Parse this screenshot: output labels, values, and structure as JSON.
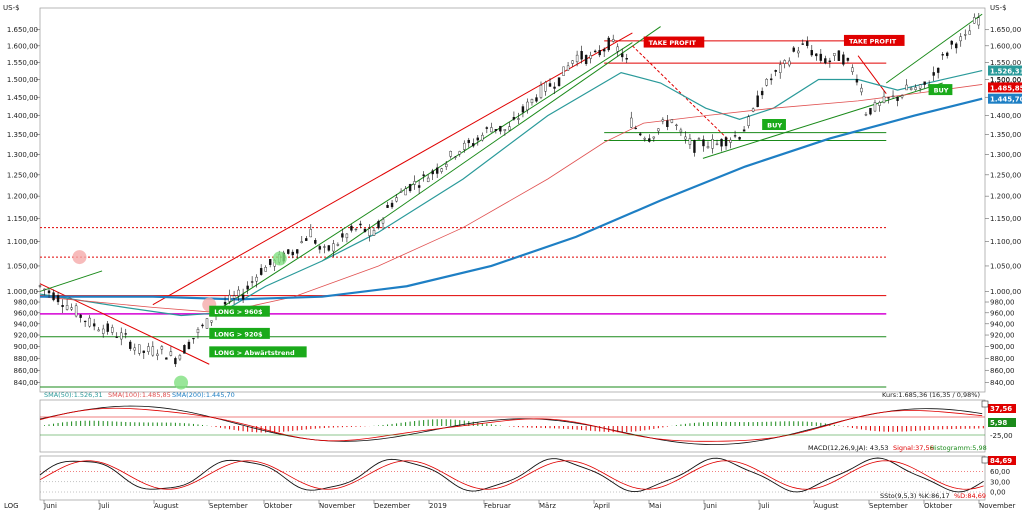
{
  "currency": "US-$",
  "scale_mode": "LOG",
  "colors": {
    "sma50": "#2a9a9a",
    "sma100": "#e05050",
    "sma200": "#1e7fc4",
    "up": "#111111",
    "resistance": "#e00000",
    "support": "#1a8a1a",
    "magenta": "#d400d4",
    "buy": "#1aaa1a",
    "sell": "#e00000"
  },
  "chart_data": [
    {
      "type": "candlestick",
      "title": "",
      "ylim": [
        825,
        1720
      ],
      "y_scale": "log",
      "y_ticks": [
        "840,00",
        "860,00",
        "880,00",
        "900,00",
        "920,00",
        "940,00",
        "960,00",
        "980,00",
        "1.000,00",
        "1.050,00",
        "1.100,00",
        "1.150,00",
        "1.200,00",
        "1.250,00",
        "1.300,00",
        "1.350,00",
        "1.400,00",
        "1.450,00",
        "1.500,00",
        "1.550,00",
        "1.600,00",
        "1.650,00"
      ],
      "y_tick_values": [
        840,
        860,
        880,
        900,
        920,
        940,
        960,
        980,
        1000,
        1050,
        1100,
        1150,
        1200,
        1250,
        1300,
        1350,
        1400,
        1450,
        1500,
        1550,
        1600,
        1650
      ],
      "x_ticks": [
        "Juni",
        "Juli",
        "August",
        "September",
        "Oktober",
        "November",
        "Dezember",
        "2019",
        "Februar",
        "März",
        "April",
        "Mai",
        "Juni",
        "Juli",
        "August",
        "September",
        "Oktober",
        "November"
      ],
      "price_path": [
        [
          0,
          1010
        ],
        [
          6,
          990
        ],
        [
          12,
          965
        ],
        [
          18,
          940
        ],
        [
          24,
          930
        ],
        [
          30,
          915
        ],
        [
          36,
          890
        ],
        [
          42,
          895
        ],
        [
          48,
          880
        ],
        [
          52,
          900
        ],
        [
          56,
          925
        ],
        [
          60,
          945
        ],
        [
          64,
          970
        ],
        [
          68,
          985
        ],
        [
          72,
          995
        ],
        [
          78,
          1040
        ],
        [
          84,
          1060
        ],
        [
          90,
          1080
        ],
        [
          96,
          1120
        ],
        [
          100,
          1075
        ],
        [
          104,
          1090
        ],
        [
          110,
          1120
        ],
        [
          114,
          1130
        ],
        [
          118,
          1110
        ],
        [
          124,
          1180
        ],
        [
          130,
          1220
        ],
        [
          136,
          1240
        ],
        [
          142,
          1270
        ],
        [
          148,
          1310
        ],
        [
          154,
          1330
        ],
        [
          160,
          1370
        ],
        [
          166,
          1360
        ],
        [
          172,
          1420
        ],
        [
          178,
          1470
        ],
        [
          184,
          1500
        ],
        [
          190,
          1570
        ],
        [
          196,
          1560
        ],
        [
          202,
          1610
        ],
        [
          206,
          1580
        ],
        [
          208,
          1550
        ],
        [
          209,
          1390
        ],
        [
          212,
          1360
        ],
        [
          216,
          1345
        ],
        [
          220,
          1370
        ],
        [
          224,
          1390
        ],
        [
          228,
          1340
        ],
        [
          232,
          1320
        ],
        [
          236,
          1330
        ],
        [
          240,
          1325
        ],
        [
          244,
          1340
        ],
        [
          248,
          1350
        ],
        [
          252,
          1390
        ],
        [
          256,
          1470
        ],
        [
          260,
          1510
        ],
        [
          264,
          1540
        ],
        [
          268,
          1590
        ],
        [
          272,
          1600
        ],
        [
          276,
          1560
        ],
        [
          280,
          1555
        ],
        [
          284,
          1570
        ],
        [
          288,
          1530
        ],
        [
          291,
          1490
        ],
        [
          292,
          1410
        ],
        [
          296,
          1420
        ],
        [
          300,
          1440
        ],
        [
          304,
          1450
        ],
        [
          308,
          1475
        ],
        [
          312,
          1470
        ],
        [
          316,
          1500
        ],
        [
          320,
          1560
        ],
        [
          324,
          1610
        ],
        [
          328,
          1620
        ],
        [
          332,
          1685
        ]
      ],
      "sma_lines": [
        {
          "name": "SMA(50)",
          "last": "1.526,31",
          "path": [
            [
              0,
              995
            ],
            [
              30,
              970
            ],
            [
              50,
              955
            ],
            [
              64,
              960
            ],
            [
              80,
              1010
            ],
            [
              100,
              1060
            ],
            [
              120,
              1120
            ],
            [
              150,
              1240
            ],
            [
              180,
              1400
            ],
            [
              206,
              1520
            ],
            [
              220,
              1490
            ],
            [
              236,
              1420
            ],
            [
              248,
              1390
            ],
            [
              260,
              1420
            ],
            [
              276,
              1500
            ],
            [
              290,
              1500
            ],
            [
              304,
              1470
            ],
            [
              320,
              1500
            ],
            [
              334,
              1526
            ]
          ]
        },
        {
          "name": "SMA(100)",
          "last": "1.485,85",
          "path": [
            [
              0,
              990
            ],
            [
              40,
              970
            ],
            [
              64,
              960
            ],
            [
              90,
              990
            ],
            [
              120,
              1050
            ],
            [
              150,
              1130
            ],
            [
              180,
              1240
            ],
            [
              200,
              1330
            ],
            [
              214,
              1380
            ],
            [
              236,
              1400
            ],
            [
              260,
              1420
            ],
            [
              290,
              1440
            ],
            [
              310,
              1460
            ],
            [
              334,
              1486
            ]
          ]
        },
        {
          "name": "SMA(200)",
          "last": "1.445,70",
          "path": [
            [
              0,
              990
            ],
            [
              40,
              990
            ],
            [
              70,
              985
            ],
            [
              100,
              990
            ],
            [
              130,
              1010
            ],
            [
              160,
              1050
            ],
            [
              190,
              1110
            ],
            [
              220,
              1190
            ],
            [
              250,
              1270
            ],
            [
              280,
              1340
            ],
            [
              310,
              1400
            ],
            [
              334,
              1446
            ]
          ]
        }
      ],
      "horizontal_levels": [
        {
          "value": 1615,
          "style": "resistance"
        },
        {
          "value": 1548,
          "style": "resistance"
        },
        {
          "value": 1355,
          "style": "support"
        },
        {
          "value": 1335,
          "style": "support"
        },
        {
          "value": 1130,
          "style": "resistance-dotted"
        },
        {
          "value": 1068,
          "style": "resistance-dotted"
        },
        {
          "value": 992,
          "style": "resistance"
        },
        {
          "value": 958,
          "style": "magenta"
        },
        {
          "value": 917,
          "style": "support"
        },
        {
          "value": 833,
          "style": "support"
        }
      ],
      "annotations": [
        {
          "label": "TAKE PROFIT",
          "kind": "sell"
        },
        {
          "label": "TAKE PROFIT",
          "kind": "sell"
        },
        {
          "label": "BUY",
          "kind": "buy"
        },
        {
          "label": "BUY",
          "kind": "buy"
        },
        {
          "label": "LONG > 960$",
          "kind": "buy"
        },
        {
          "label": "LONG > 920$",
          "kind": "buy"
        },
        {
          "label": "LONG > Abwärtstrend",
          "kind": "buy"
        }
      ],
      "price_labels": [
        {
          "value": "1.526,31",
          "color": "sma50"
        },
        {
          "value": "1.500,00",
          "color": "plain"
        },
        {
          "value": "1.485,85",
          "color": "sma100"
        },
        {
          "value": "1.445,70",
          "color": "sma200"
        }
      ],
      "legend": {
        "sma50": "SMA(50):1.526,31",
        "sma100": "SMA(100):1.485,85",
        "sma200": "SMA(200):1.445,70"
      },
      "quote": "Kurs:1.685,36 (16,35 / 0,98%)"
    },
    {
      "type": "line",
      "title": "",
      "series": [
        {
          "name": "MACD(12,26,9,JA)",
          "last": "43,53"
        },
        {
          "name": "Signal",
          "last": "37,56"
        },
        {
          "name": "Histogramm",
          "last": "5,98"
        }
      ],
      "y_ticks": [
        "-25,00"
      ],
      "badges": [
        "37,56",
        "5,98"
      ],
      "legend": {
        "macd": "MACD(12,26,9,JA): 43,53",
        "signal": "Signal:37,56",
        "hist": "Histogramm:5,98"
      }
    },
    {
      "type": "line",
      "title": "",
      "series": [
        {
          "name": "SSto(9,5,3) %K",
          "last": "86,17"
        },
        {
          "name": "%D",
          "last": "84,69"
        }
      ],
      "y_ticks": [
        "60,00",
        "30,00",
        "0,00"
      ],
      "badges": [
        "84,69"
      ],
      "legend": {
        "k": "SSto(9,5,3) %K:86,17",
        "d": "%D:84,69"
      }
    }
  ]
}
